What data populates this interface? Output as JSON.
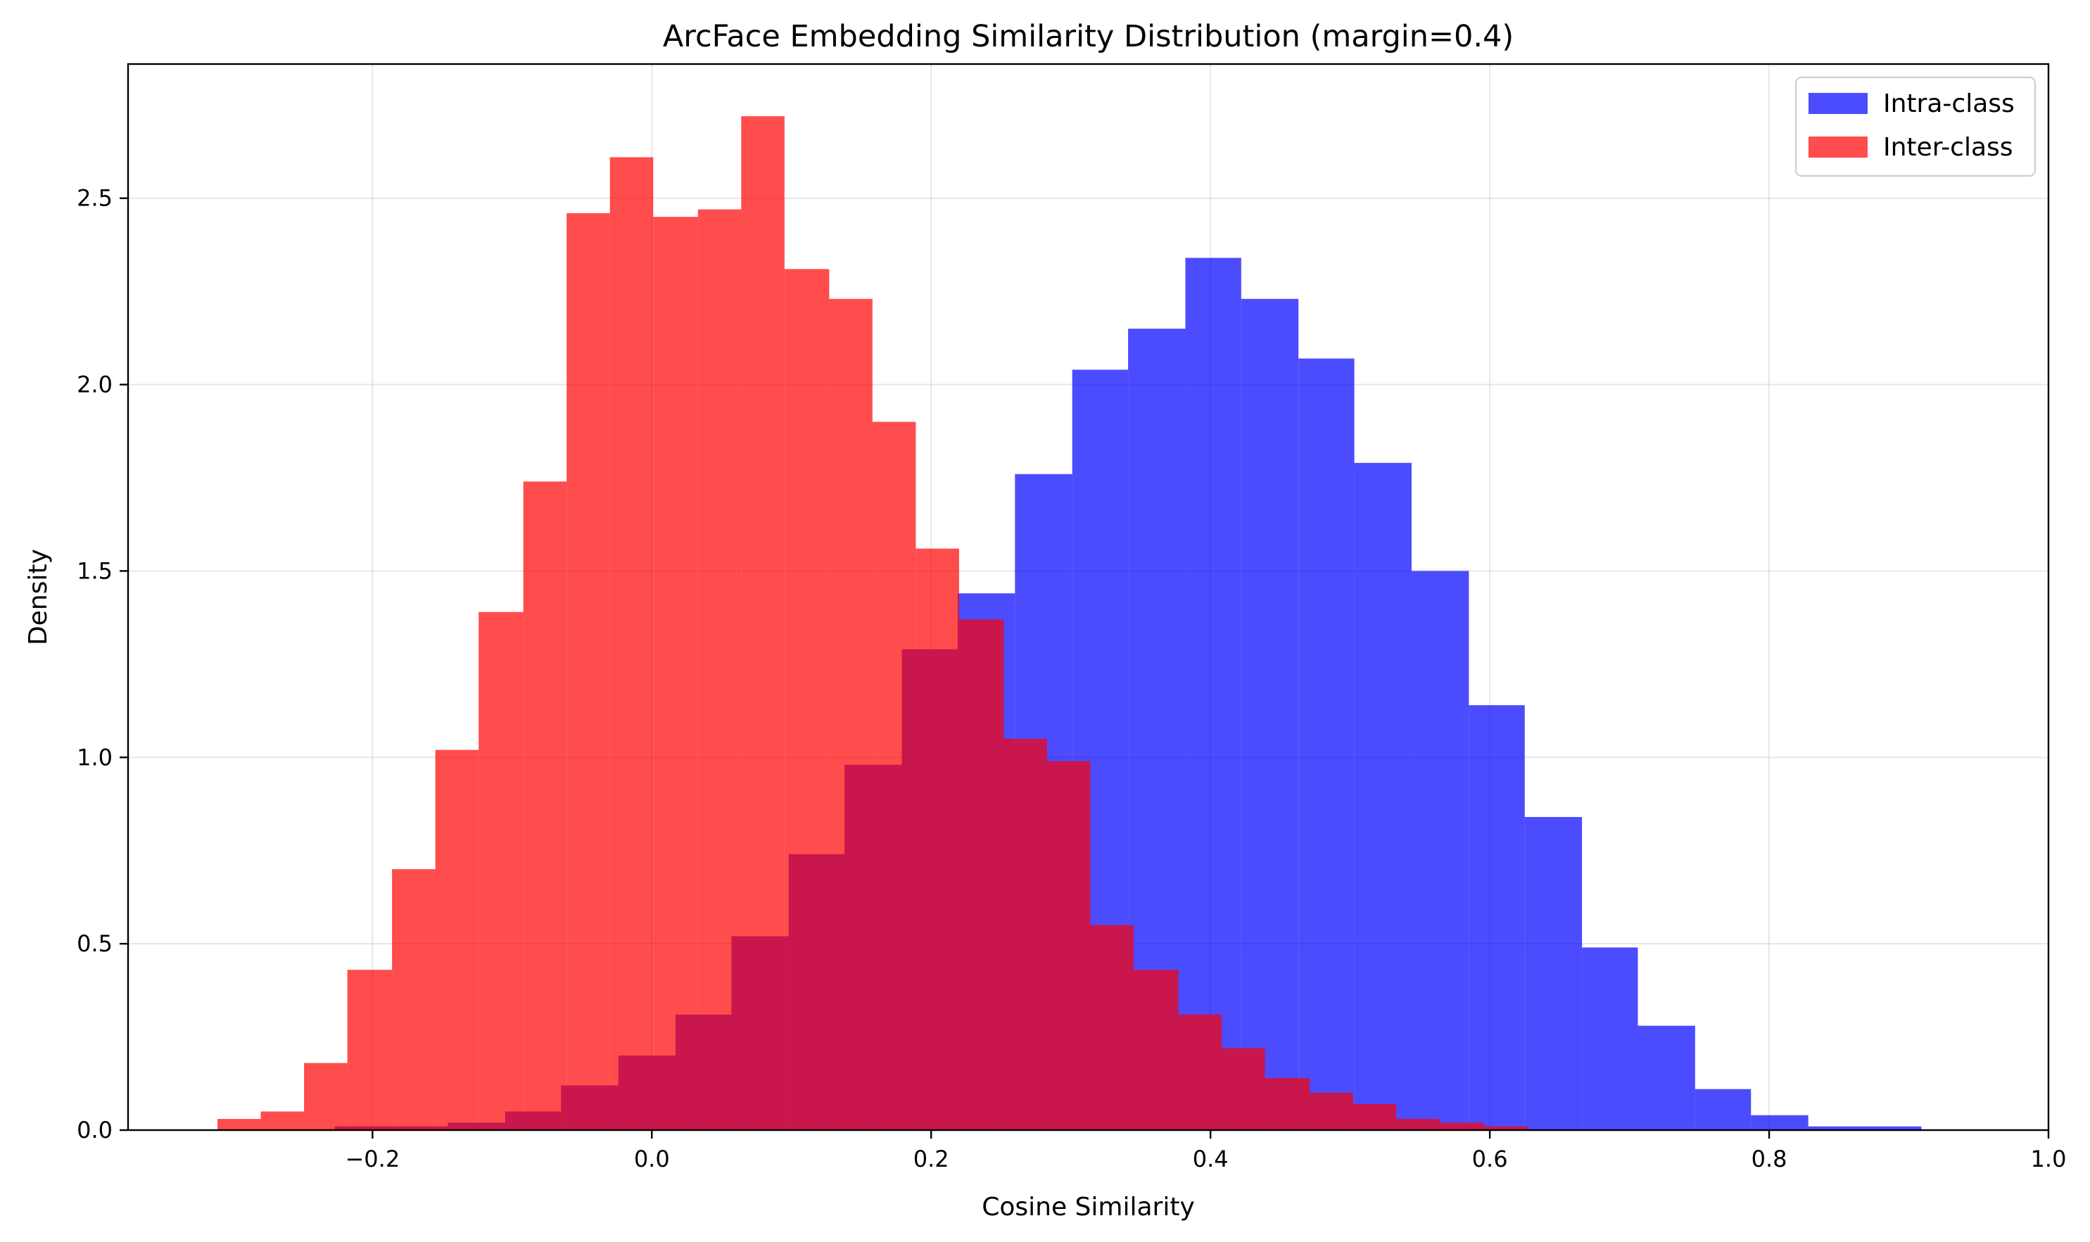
{
  "chart_data": {
    "type": "bar",
    "title": "ArcFace Embedding Similarity Distribution (margin=0.4)",
    "xlabel": "Cosine Similarity",
    "ylabel": "Density",
    "xlim": [
      -0.375,
      1.0
    ],
    "ylim": [
      0.0,
      2.86
    ],
    "xticks": [
      -0.2,
      0.0,
      0.2,
      0.4,
      0.6,
      0.8,
      1.0
    ],
    "xtick_labels": [
      "−0.2",
      "0.0",
      "0.2",
      "0.4",
      "0.6",
      "0.8",
      "1.0"
    ],
    "yticks": [
      0.0,
      0.5,
      1.0,
      1.5,
      2.0,
      2.5
    ],
    "ytick_labels": [
      "0.0",
      "0.5",
      "1.0",
      "1.5",
      "2.0",
      "2.5"
    ],
    "grid": true,
    "legend_position": "top-right",
    "series": [
      {
        "name": "Intra-class",
        "color": "#0000ff",
        "opacity": 0.7,
        "bin_edges": [
          -0.227,
          -0.186,
          -0.146,
          -0.105,
          -0.065,
          -0.024,
          0.017,
          0.057,
          0.098,
          0.138,
          0.179,
          0.219,
          0.26,
          0.301,
          0.341,
          0.382,
          0.422,
          0.463,
          0.503,
          0.544,
          0.585,
          0.625,
          0.666,
          0.706,
          0.747,
          0.787,
          0.828,
          0.869,
          0.909
        ],
        "values": [
          0.01,
          0.01,
          0.02,
          0.05,
          0.12,
          0.2,
          0.31,
          0.52,
          0.74,
          0.98,
          1.29,
          1.44,
          1.76,
          2.04,
          2.15,
          2.34,
          2.23,
          2.07,
          1.79,
          1.5,
          1.14,
          0.84,
          0.49,
          0.28,
          0.11,
          0.04,
          0.01,
          0.01
        ]
      },
      {
        "name": "Inter-class",
        "color": "#ff0000",
        "opacity": 0.7,
        "bin_edges": [
          -0.311,
          -0.28,
          -0.249,
          -0.218,
          -0.186,
          -0.155,
          -0.124,
          -0.092,
          -0.061,
          -0.03,
          0.001,
          0.033,
          0.064,
          0.095,
          0.127,
          0.158,
          0.189,
          0.22,
          0.252,
          0.283,
          0.314,
          0.345,
          0.377,
          0.408,
          0.439,
          0.471,
          0.502,
          0.533,
          0.564,
          0.596,
          0.627
        ],
        "values": [
          0.03,
          0.05,
          0.18,
          0.43,
          0.7,
          1.02,
          1.39,
          1.74,
          2.46,
          2.61,
          2.45,
          2.47,
          2.72,
          2.31,
          2.23,
          1.9,
          1.56,
          1.37,
          1.05,
          0.99,
          0.55,
          0.43,
          0.31,
          0.22,
          0.14,
          0.1,
          0.07,
          0.03,
          0.02,
          0.01
        ]
      }
    ]
  }
}
